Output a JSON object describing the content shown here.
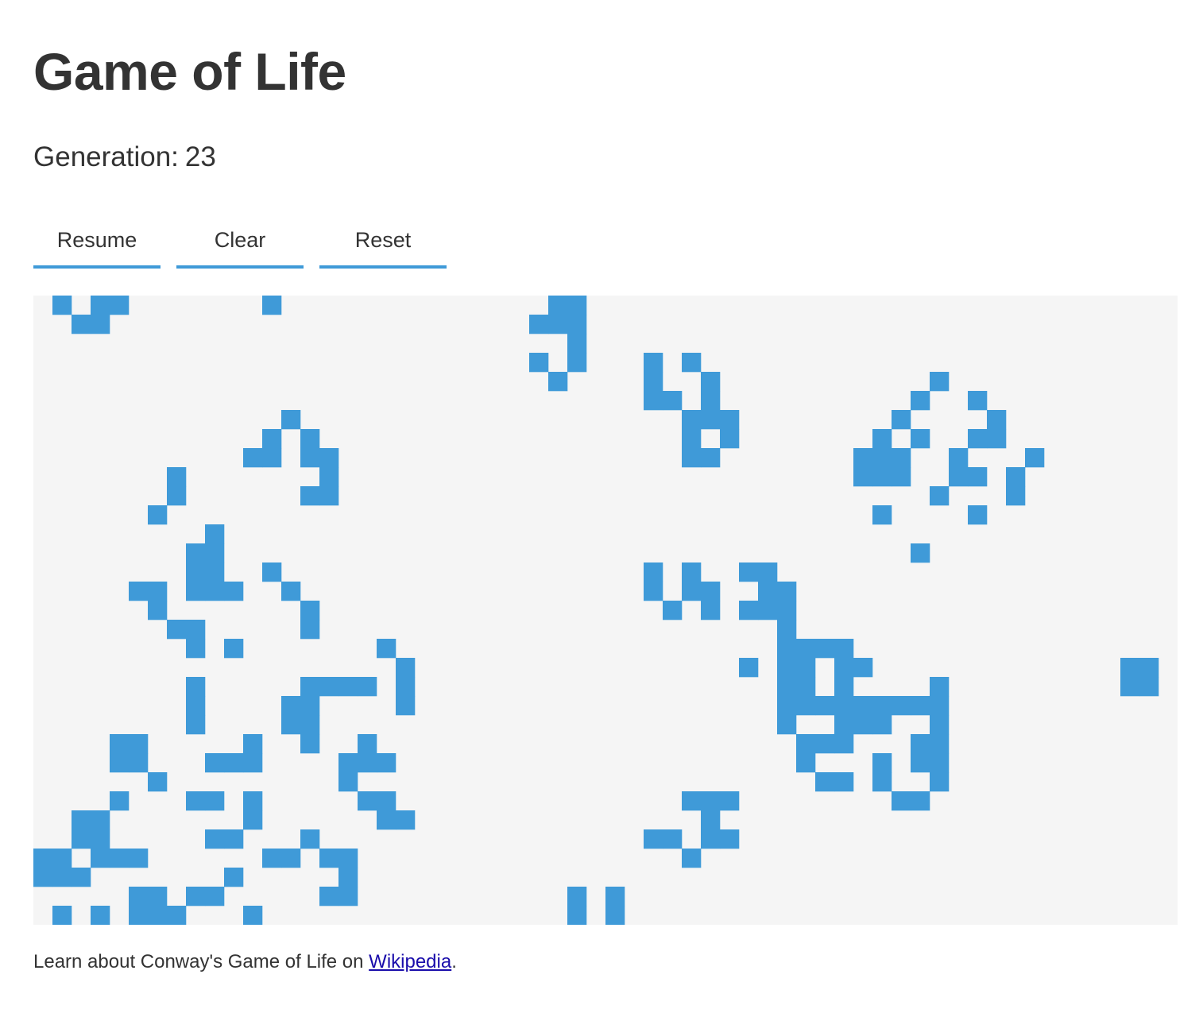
{
  "title": "Game of Life",
  "generation": {
    "label": "Generation:",
    "value": "23"
  },
  "controls": {
    "resume_label": "Resume",
    "clear_label": "Clear",
    "reset_label": "Reset"
  },
  "footer": {
    "prefix": "Learn about Conway's Game of Life on ",
    "link_text": "Wikipedia",
    "suffix": "."
  },
  "colors": {
    "alive": "#3f9ad8",
    "dead": "#f5f5f5",
    "accent": "#3f9ad8"
  },
  "grid": {
    "rows": 33,
    "cols": 60,
    "alive_cells": [
      [
        0,
        1
      ],
      [
        0,
        3
      ],
      [
        0,
        4
      ],
      [
        0,
        12
      ],
      [
        0,
        27
      ],
      [
        0,
        28
      ],
      [
        1,
        2
      ],
      [
        1,
        3
      ],
      [
        1,
        26
      ],
      [
        1,
        27
      ],
      [
        1,
        28
      ],
      [
        2,
        28
      ],
      [
        3,
        26
      ],
      [
        3,
        28
      ],
      [
        3,
        32
      ],
      [
        3,
        34
      ],
      [
        4,
        27
      ],
      [
        4,
        32
      ],
      [
        4,
        35
      ],
      [
        4,
        47
      ],
      [
        5,
        32
      ],
      [
        5,
        33
      ],
      [
        5,
        35
      ],
      [
        5,
        46
      ],
      [
        5,
        49
      ],
      [
        6,
        13
      ],
      [
        6,
        34
      ],
      [
        6,
        35
      ],
      [
        6,
        36
      ],
      [
        6,
        45
      ],
      [
        6,
        50
      ],
      [
        7,
        12
      ],
      [
        7,
        14
      ],
      [
        7,
        34
      ],
      [
        7,
        36
      ],
      [
        7,
        44
      ],
      [
        7,
        46
      ],
      [
        7,
        49
      ],
      [
        7,
        50
      ],
      [
        8,
        11
      ],
      [
        8,
        12
      ],
      [
        8,
        14
      ],
      [
        8,
        15
      ],
      [
        8,
        34
      ],
      [
        8,
        35
      ],
      [
        8,
        43
      ],
      [
        8,
        44
      ],
      [
        8,
        45
      ],
      [
        8,
        48
      ],
      [
        8,
        52
      ],
      [
        9,
        7
      ],
      [
        9,
        15
      ],
      [
        9,
        43
      ],
      [
        9,
        44
      ],
      [
        9,
        45
      ],
      [
        9,
        48
      ],
      [
        9,
        49
      ],
      [
        9,
        51
      ],
      [
        10,
        7
      ],
      [
        10,
        14
      ],
      [
        10,
        15
      ],
      [
        10,
        47
      ],
      [
        10,
        51
      ],
      [
        11,
        6
      ],
      [
        11,
        44
      ],
      [
        11,
        49
      ],
      [
        12,
        9
      ],
      [
        13,
        8
      ],
      [
        13,
        9
      ],
      [
        13,
        46
      ],
      [
        14,
        8
      ],
      [
        14,
        9
      ],
      [
        14,
        12
      ],
      [
        14,
        32
      ],
      [
        14,
        34
      ],
      [
        14,
        37
      ],
      [
        14,
        38
      ],
      [
        15,
        5
      ],
      [
        15,
        6
      ],
      [
        15,
        8
      ],
      [
        15,
        9
      ],
      [
        15,
        10
      ],
      [
        15,
        13
      ],
      [
        15,
        32
      ],
      [
        15,
        34
      ],
      [
        15,
        35
      ],
      [
        15,
        38
      ],
      [
        15,
        39
      ],
      [
        16,
        6
      ],
      [
        16,
        14
      ],
      [
        16,
        33
      ],
      [
        16,
        35
      ],
      [
        16,
        37
      ],
      [
        16,
        38
      ],
      [
        16,
        39
      ],
      [
        17,
        7
      ],
      [
        17,
        8
      ],
      [
        17,
        14
      ],
      [
        17,
        39
      ],
      [
        18,
        8
      ],
      [
        18,
        10
      ],
      [
        18,
        18
      ],
      [
        18,
        39
      ],
      [
        18,
        40
      ],
      [
        18,
        41
      ],
      [
        18,
        42
      ],
      [
        19,
        19
      ],
      [
        19,
        37
      ],
      [
        19,
        39
      ],
      [
        19,
        40
      ],
      [
        19,
        42
      ],
      [
        19,
        43
      ],
      [
        19,
        57
      ],
      [
        19,
        58
      ],
      [
        20,
        8
      ],
      [
        20,
        14
      ],
      [
        20,
        15
      ],
      [
        20,
        16
      ],
      [
        20,
        17
      ],
      [
        20,
        19
      ],
      [
        20,
        39
      ],
      [
        20,
        40
      ],
      [
        20,
        42
      ],
      [
        20,
        47
      ],
      [
        20,
        57
      ],
      [
        20,
        58
      ],
      [
        21,
        8
      ],
      [
        21,
        13
      ],
      [
        21,
        14
      ],
      [
        21,
        19
      ],
      [
        21,
        39
      ],
      [
        21,
        40
      ],
      [
        21,
        41
      ],
      [
        21,
        42
      ],
      [
        21,
        43
      ],
      [
        21,
        44
      ],
      [
        21,
        45
      ],
      [
        21,
        46
      ],
      [
        21,
        47
      ],
      [
        22,
        8
      ],
      [
        22,
        13
      ],
      [
        22,
        14
      ],
      [
        22,
        39
      ],
      [
        22,
        42
      ],
      [
        22,
        43
      ],
      [
        22,
        44
      ],
      [
        22,
        47
      ],
      [
        23,
        4
      ],
      [
        23,
        5
      ],
      [
        23,
        11
      ],
      [
        23,
        14
      ],
      [
        23,
        17
      ],
      [
        23,
        40
      ],
      [
        23,
        41
      ],
      [
        23,
        42
      ],
      [
        23,
        46
      ],
      [
        23,
        47
      ],
      [
        24,
        4
      ],
      [
        24,
        5
      ],
      [
        24,
        9
      ],
      [
        24,
        10
      ],
      [
        24,
        11
      ],
      [
        24,
        16
      ],
      [
        24,
        17
      ],
      [
        24,
        18
      ],
      [
        24,
        40
      ],
      [
        24,
        44
      ],
      [
        24,
        46
      ],
      [
        24,
        47
      ],
      [
        25,
        6
      ],
      [
        25,
        16
      ],
      [
        25,
        41
      ],
      [
        25,
        42
      ],
      [
        25,
        44
      ],
      [
        25,
        47
      ],
      [
        26,
        4
      ],
      [
        26,
        8
      ],
      [
        26,
        9
      ],
      [
        26,
        11
      ],
      [
        26,
        17
      ],
      [
        26,
        18
      ],
      [
        26,
        34
      ],
      [
        26,
        35
      ],
      [
        26,
        36
      ],
      [
        26,
        45
      ],
      [
        26,
        46
      ],
      [
        27,
        2
      ],
      [
        27,
        3
      ],
      [
        27,
        11
      ],
      [
        27,
        18
      ],
      [
        27,
        19
      ],
      [
        27,
        35
      ],
      [
        28,
        2
      ],
      [
        28,
        3
      ],
      [
        28,
        9
      ],
      [
        28,
        10
      ],
      [
        28,
        14
      ],
      [
        28,
        32
      ],
      [
        28,
        33
      ],
      [
        28,
        35
      ],
      [
        28,
        36
      ],
      [
        29,
        0
      ],
      [
        29,
        1
      ],
      [
        29,
        3
      ],
      [
        29,
        4
      ],
      [
        29,
        5
      ],
      [
        29,
        12
      ],
      [
        29,
        13
      ],
      [
        29,
        15
      ],
      [
        29,
        16
      ],
      [
        29,
        34
      ],
      [
        30,
        0
      ],
      [
        30,
        1
      ],
      [
        30,
        2
      ],
      [
        30,
        10
      ],
      [
        30,
        16
      ],
      [
        31,
        5
      ],
      [
        31,
        6
      ],
      [
        31,
        8
      ],
      [
        31,
        9
      ],
      [
        31,
        15
      ],
      [
        31,
        16
      ],
      [
        31,
        28
      ],
      [
        31,
        30
      ],
      [
        32,
        1
      ],
      [
        32,
        3
      ],
      [
        32,
        5
      ],
      [
        32,
        6
      ],
      [
        32,
        7
      ],
      [
        32,
        11
      ],
      [
        32,
        28
      ],
      [
        32,
        30
      ]
    ]
  }
}
